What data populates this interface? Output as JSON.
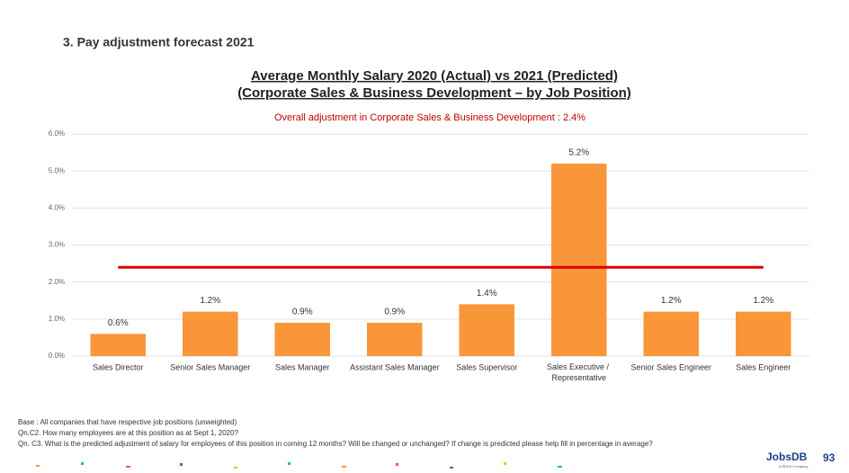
{
  "section_title": "3. Pay adjustment forecast 2021",
  "chart_data": {
    "type": "bar",
    "title": [
      "Average Monthly Salary 2020 (Actual) vs 2021 (Predicted)",
      "(Corporate Sales & Business Development – by Job Position)"
    ],
    "subtitle": "Overall adjustment in Corporate Sales & Business Development : 2.4%",
    "categories": [
      "Sales Director",
      "Senior Sales Manager",
      "Sales Manager",
      "Assistant Sales Manager",
      "Sales Supervisor",
      "Sales Executive / Representative",
      "Senior Sales Engineer",
      "Sales Engineer"
    ],
    "values": [
      0.6,
      1.2,
      0.9,
      0.9,
      1.4,
      5.2,
      1.2,
      1.2
    ],
    "value_labels": [
      "0.6%",
      "1.2%",
      "0.9%",
      "0.9%",
      "1.4%",
      "5.2%",
      "1.2%",
      "1.2%"
    ],
    "color": "#f9963a",
    "reference_value": 2.4,
    "reference_color": "#e00000",
    "ylim": [
      0,
      6
    ],
    "yticks": [
      {
        "value": 0,
        "label": "0.0%"
      },
      {
        "value": 1,
        "label": "1.0%"
      },
      {
        "value": 2,
        "label": "2.0%"
      },
      {
        "value": 3,
        "label": "3.0%"
      },
      {
        "value": 4,
        "label": "4.0%"
      },
      {
        "value": 5,
        "label": "5.0%"
      },
      {
        "value": 6,
        "label": "6.0%"
      }
    ],
    "grid": true
  },
  "footnotes": [
    "Base : All companies that have respective job positions (unweighted)",
    "Qn.C2. How many employees are at this position as at Sept 1, 2020?",
    "Qn. C3. What is the predicted adjustment of salary for employees of this position in coming 12 months? Will be changed or unchanged?  If change is predicted please help fill in percentage in average?"
  ],
  "logo": "JobsDB",
  "logo_sub": "A SEEK Company",
  "page_number": "93"
}
